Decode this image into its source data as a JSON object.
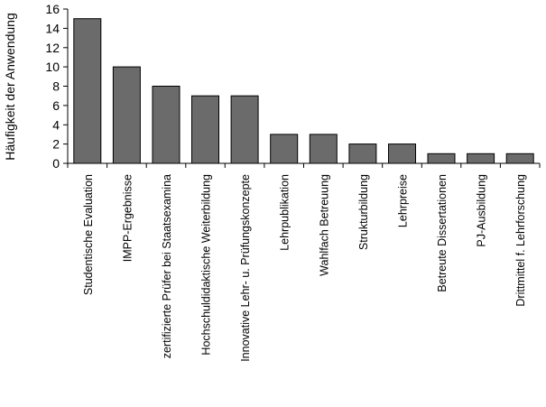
{
  "chart_data": {
    "type": "bar",
    "title": "",
    "xlabel": "",
    "ylabel": "Häufigkeit der Anwendung",
    "ylim": [
      0,
      16
    ],
    "yticks": [
      0,
      2,
      4,
      6,
      8,
      10,
      12,
      14,
      16
    ],
    "grid": false,
    "legend": "none",
    "bar_color": "#6b6b6b",
    "categories": [
      "Studentische Evaluation",
      "IMPP-Ergebnisse",
      "zertifizierte Prüfer bei Staatsexamina",
      "Hochschuldidaktische Weiterbildung",
      "Innovative Lehr- u. Prüfungskonzepte",
      "Lehrpublikation",
      "Wahlfach Betreuung",
      "Strukturbildung",
      "Lehrpreise",
      "Betreute Dissertationen",
      "PJ-Ausbildung",
      "Drittmittel f. Lehrforschung"
    ],
    "values": [
      15,
      10,
      8,
      7,
      7,
      3,
      3,
      2,
      2,
      1,
      1,
      1
    ]
  }
}
